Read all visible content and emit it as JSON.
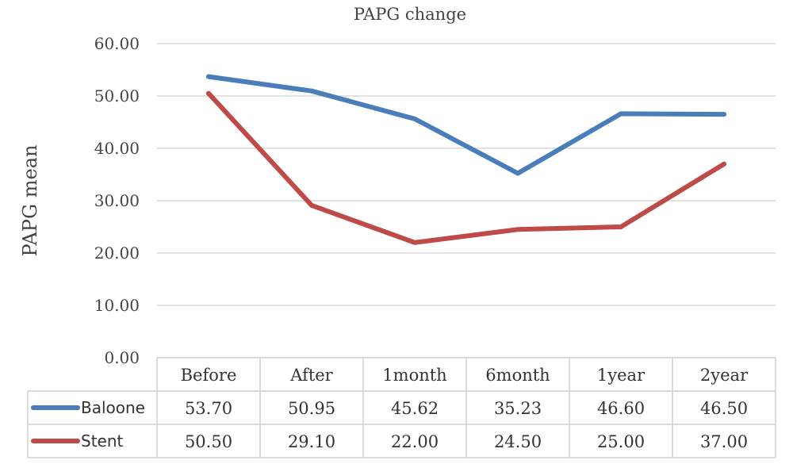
{
  "chart_data": {
    "type": "line",
    "title": "PAPG change",
    "xlabel": "",
    "ylabel": "PAPG mean",
    "ylim": [
      0,
      60
    ],
    "yticks": [
      "0.00",
      "10.00",
      "20.00",
      "30.00",
      "40.00",
      "50.00",
      "60.00"
    ],
    "grid": true,
    "legend": "data-table",
    "categories": [
      "Before",
      "After",
      "1month",
      "6month",
      "1year",
      "2year"
    ],
    "series": [
      {
        "name": "Baloone",
        "color": "#4a7ebb",
        "values": [
          53.7,
          50.95,
          45.62,
          35.23,
          46.6,
          46.5
        ],
        "labels": [
          "53.70",
          "50.95",
          "45.62",
          "35.23",
          "46.60",
          "46.50"
        ]
      },
      {
        "name": "Stent",
        "color": "#be4b48",
        "values": [
          50.5,
          29.1,
          22.0,
          24.5,
          25.0,
          37.0
        ],
        "labels": [
          "50.50",
          "29.10",
          "22.00",
          "24.50",
          "25.00",
          "37.00"
        ]
      }
    ]
  }
}
